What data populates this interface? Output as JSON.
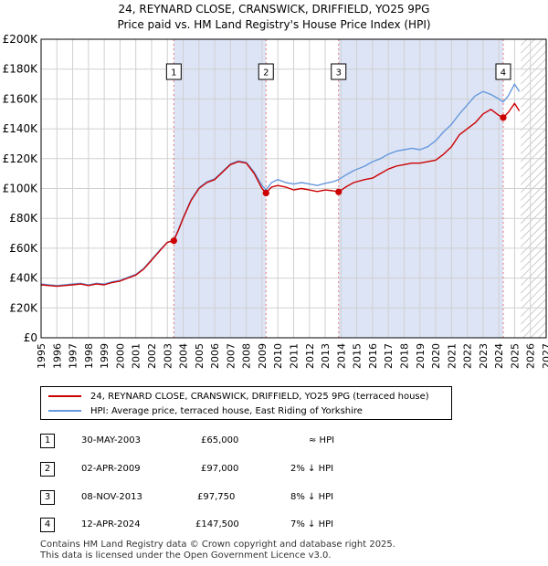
{
  "title_line1": "24, REYNARD CLOSE, CRANSWICK, DRIFFIELD, YO25 9PG",
  "title_line2": "Price paid vs. HM Land Registry's House Price Index (HPI)",
  "legend": {
    "property": "24, REYNARD CLOSE, CRANSWICK, DRIFFIELD, YO25 9PG (terraced house)",
    "hpi": "HPI: Average price, terraced house, East Riding of Yorkshire"
  },
  "sales": [
    {
      "num": "1",
      "date": "30-MAY-2003",
      "price": "£65,000",
      "hpi": "≈ HPI"
    },
    {
      "num": "2",
      "date": "02-APR-2009",
      "price": "£97,000",
      "hpi": "2% ↓ HPI"
    },
    {
      "num": "3",
      "date": "08-NOV-2013",
      "price": "£97,750",
      "hpi": "8% ↓ HPI"
    },
    {
      "num": "4",
      "date": "12-APR-2024",
      "price": "£147,500",
      "hpi": "7% ↓ HPI"
    }
  ],
  "footer_line1": "Contains HM Land Registry data © Crown copyright and database right 2025.",
  "footer_line2": "This data is licensed under the Open Government Licence v3.0.",
  "colors": {
    "property": "#cc0000",
    "hpi": "#6699dd",
    "shade": "#dde4f5",
    "grid": "#d0d0d0",
    "marker_line": "#e87878"
  },
  "chart_data": {
    "type": "line",
    "xlim": [
      1995,
      2027
    ],
    "ylim": [
      0,
      200000
    ],
    "x_ticks": [
      1995,
      1996,
      1997,
      1998,
      1999,
      2000,
      2001,
      2002,
      2003,
      2004,
      2005,
      2006,
      2007,
      2008,
      2009,
      2010,
      2011,
      2012,
      2013,
      2014,
      2015,
      2016,
      2017,
      2018,
      2019,
      2020,
      2021,
      2022,
      2023,
      2024,
      2025,
      2026,
      2027
    ],
    "y_ticks": [
      0,
      20000,
      40000,
      60000,
      80000,
      100000,
      120000,
      140000,
      160000,
      180000,
      200000
    ],
    "y_tick_labels": [
      "£0",
      "£20K",
      "£40K",
      "£60K",
      "£80K",
      "£100K",
      "£120K",
      "£140K",
      "£160K",
      "£180K",
      "£200K"
    ],
    "data_end_year": 2025.4,
    "shaded_periods": [
      [
        2003.41,
        2009.25
      ],
      [
        2013.85,
        2024.28
      ]
    ],
    "sale_markers": [
      {
        "label": "1",
        "x": 2003.41,
        "y": 65000
      },
      {
        "label": "2",
        "x": 2009.25,
        "y": 97000
      },
      {
        "label": "3",
        "x": 2013.85,
        "y": 97750
      },
      {
        "label": "4",
        "x": 2024.28,
        "y": 147500
      }
    ],
    "series": [
      {
        "name": "24, REYNARD CLOSE, CRANSWICK, DRIFFIELD, YO25 9PG (terraced house)",
        "x": [
          1995.0,
          1995.5,
          1996.0,
          1996.5,
          1997.0,
          1997.5,
          1998.0,
          1998.5,
          1999.0,
          1999.5,
          2000.0,
          2000.5,
          2001.0,
          2001.5,
          2002.0,
          2002.5,
          2003.0,
          2003.41,
          2003.7,
          2004.0,
          2004.5,
          2005.0,
          2005.5,
          2006.0,
          2006.5,
          2007.0,
          2007.5,
          2008.0,
          2008.5,
          2009.0,
          2009.25,
          2009.6,
          2010.0,
          2010.5,
          2011.0,
          2011.5,
          2012.0,
          2012.5,
          2013.0,
          2013.5,
          2013.85,
          2014.3,
          2014.8,
          2015.5,
          2016.0,
          2016.5,
          2017.0,
          2017.5,
          2018.0,
          2018.5,
          2019.0,
          2019.5,
          2020.0,
          2020.5,
          2021.0,
          2021.5,
          2022.0,
          2022.5,
          2023.0,
          2023.5,
          2024.0,
          2024.28,
          2024.6,
          2025.0,
          2025.3
        ],
        "values": [
          35500,
          35000,
          34500,
          35000,
          35500,
          36000,
          35000,
          36000,
          35500,
          37000,
          38000,
          40000,
          42000,
          46000,
          52000,
          58000,
          64000,
          65000,
          72000,
          80000,
          92000,
          100000,
          104000,
          106000,
          111000,
          116000,
          118000,
          117000,
          110000,
          100000,
          97000,
          101000,
          102000,
          101000,
          99000,
          100000,
          99000,
          98000,
          99000,
          98500,
          97750,
          101000,
          104000,
          106000,
          107000,
          110000,
          113000,
          115000,
          116000,
          117000,
          117000,
          118000,
          119000,
          123000,
          128000,
          136000,
          140000,
          144000,
          150000,
          153000,
          149000,
          147500,
          151000,
          157000,
          152000
        ]
      },
      {
        "name": "HPI: Average price, terraced house, East Riding of Yorkshire",
        "x": [
          1995.0,
          1995.5,
          1996.0,
          1996.5,
          1997.0,
          1997.5,
          1998.0,
          1998.5,
          1999.0,
          1999.5,
          2000.0,
          2000.5,
          2001.0,
          2001.5,
          2002.0,
          2002.5,
          2003.0,
          2003.41,
          2003.7,
          2004.0,
          2004.5,
          2005.0,
          2005.5,
          2006.0,
          2006.5,
          2007.0,
          2007.5,
          2008.0,
          2008.5,
          2009.0,
          2009.25,
          2009.6,
          2010.0,
          2010.5,
          2011.0,
          2011.5,
          2012.0,
          2012.5,
          2013.0,
          2013.5,
          2013.85,
          2014.3,
          2014.8,
          2015.5,
          2016.0,
          2016.5,
          2017.0,
          2017.5,
          2018.0,
          2018.5,
          2019.0,
          2019.5,
          2020.0,
          2020.5,
          2021.0,
          2021.5,
          2022.0,
          2022.5,
          2023.0,
          2023.5,
          2024.0,
          2024.28,
          2024.6,
          2025.0,
          2025.3
        ],
        "values": [
          36000,
          35500,
          35000,
          35500,
          36000,
          36500,
          35500,
          36500,
          36000,
          37500,
          38500,
          40500,
          42500,
          46500,
          52500,
          58500,
          64000,
          65500,
          72500,
          80500,
          92500,
          100500,
          104500,
          106500,
          111500,
          116500,
          118500,
          117500,
          111000,
          102000,
          99000,
          104000,
          106000,
          104000,
          103000,
          104000,
          103000,
          102000,
          103500,
          104500,
          106000,
          109000,
          112000,
          115000,
          118000,
          120000,
          123000,
          125000,
          126000,
          127000,
          126000,
          128000,
          132000,
          138000,
          143000,
          150000,
          156000,
          162000,
          165000,
          163000,
          160000,
          158000,
          162000,
          170000,
          165000
        ]
      }
    ]
  }
}
